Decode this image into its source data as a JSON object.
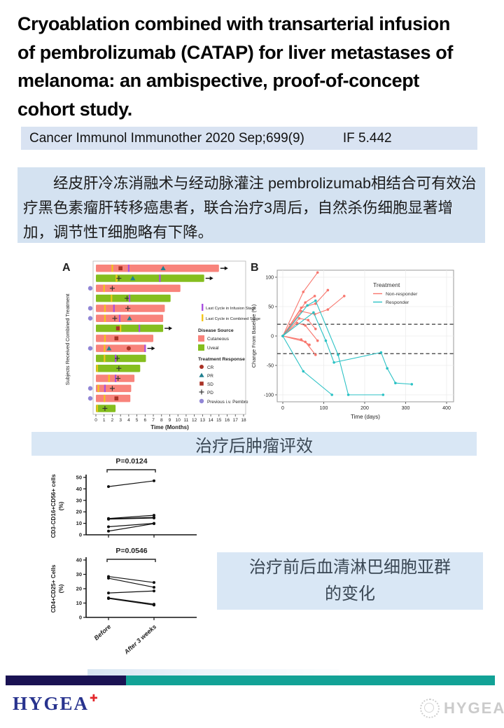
{
  "title": "Cryoablation combined with transarterial infusion\nof pembrolizumab (CATAP) for liver metastases of\nmelanoma: an ambispective, proof-of-concept\ncohort study.",
  "citation": {
    "journal": "Cancer Immunol Immunother 2020 Sep;699(9)",
    "impact_factor": "IF 5.442"
  },
  "summary_cn": "经皮肝冷冻消融术与经动脉灌注 pembrolizumab相结合可有效治疗黑色素瘤肝转移癌患者，联合治疗3周后，自然杀伤细胞显著增加，调节性T细胞略有下降。",
  "caption_tumor": "治疗后肿瘤评效",
  "caption_lymph_line1": "治疗前后血清淋巴细胞亚群",
  "caption_lymph_line2": "的变化",
  "footer": {
    "logo_text": "HYGEA",
    "watermark_text": "HYGEA"
  },
  "colors": {
    "cutaneous": "#f8837b",
    "uveal": "#85be1f",
    "infusion_line": "#a94fe0",
    "combined_line": "#f2c51c",
    "cr_sd": "#a93226",
    "pr": "#1f7f8f",
    "pd": "#333333",
    "pembro": "#9186d6",
    "nonresponder": "#f8766d",
    "responder": "#2cc2c5",
    "footer_navy": "#1a1253",
    "footer_teal": "#12a296"
  },
  "chart_data": [
    {
      "type": "swimmer",
      "panel": "A",
      "ylabel": "Subjects Received Combined Treatment",
      "xlabel": "Time (Months)",
      "xticks": [
        0,
        1,
        2,
        3,
        4,
        5,
        6,
        7,
        8,
        9,
        10,
        11,
        12,
        13,
        14,
        15,
        16,
        17,
        18
      ],
      "legend": {
        "infusion": "Last Cycle in Infusion Stage",
        "combined": "Last Cycle in Combined Stage",
        "disease_title": "Disease Source",
        "cutaneous": "Cutaneous",
        "uveal": "Uveal",
        "response_title": "Treatment Response",
        "cr": "CR",
        "pr": "PR",
        "sd": "SD",
        "pd": "PD",
        "pembro": "Previous i.v. Pembro"
      },
      "bars": [
        {
          "len": 15.0,
          "source": "cutaneous",
          "pembro": false,
          "arrow": true,
          "marks": [
            {
              "t": 2.0,
              "m": "combined"
            },
            {
              "t": 3.0,
              "m": "SD"
            },
            {
              "t": 4.0,
              "m": "infusion"
            },
            {
              "t": 8.2,
              "m": "PR"
            }
          ]
        },
        {
          "len": 13.2,
          "source": "uveal",
          "pembro": false,
          "arrow": true,
          "marks": [
            {
              "t": 2.5,
              "m": "combined"
            },
            {
              "t": 2.8,
              "m": "PD"
            },
            {
              "t": 4.5,
              "m": "PR"
            },
            {
              "t": 7.8,
              "m": "infusion"
            }
          ]
        },
        {
          "len": 10.3,
          "source": "cutaneous",
          "pembro": true,
          "arrow": false,
          "marks": [
            {
              "t": 1.0,
              "m": "combined"
            },
            {
              "t": 2.0,
              "m": "PD"
            }
          ]
        },
        {
          "len": 9.1,
          "source": "uveal",
          "pembro": false,
          "arrow": false,
          "marks": [
            {
              "t": 1.9,
              "m": "combined"
            },
            {
              "t": 3.8,
              "m": "PD"
            },
            {
              "t": 4.1,
              "m": "infusion"
            }
          ]
        },
        {
          "len": 8.4,
          "source": "cutaneous",
          "pembro": true,
          "arrow": false,
          "marks": [
            {
              "t": 1.1,
              "m": "combined"
            },
            {
              "t": 2.2,
              "m": "infusion"
            },
            {
              "t": 3.9,
              "m": "PD"
            }
          ]
        },
        {
          "len": 8.2,
          "source": "cutaneous",
          "pembro": true,
          "arrow": false,
          "marks": [
            {
              "t": 1.1,
              "m": "combined"
            },
            {
              "t": 2.3,
              "m": "PD"
            },
            {
              "t": 2.9,
              "m": "infusion"
            },
            {
              "t": 4.1,
              "m": "PR"
            }
          ]
        },
        {
          "len": 8.2,
          "source": "uveal",
          "pembro": false,
          "arrow": true,
          "marks": [
            {
              "t": 2.7,
              "m": "SD"
            },
            {
              "t": 3.0,
              "m": "combined"
            },
            {
              "t": 5.3,
              "m": "infusion"
            }
          ]
        },
        {
          "len": 7.0,
          "source": "cutaneous",
          "pembro": false,
          "arrow": false,
          "marks": [
            {
              "t": 1.1,
              "m": "combined"
            },
            {
              "t": 2.5,
              "m": "SD"
            }
          ]
        },
        {
          "len": 6.1,
          "source": "cutaneous",
          "pembro": true,
          "arrow": true,
          "marks": [
            {
              "t": 1.05,
              "m": "combined"
            },
            {
              "t": 1.6,
              "m": "PR"
            },
            {
              "t": 4.0,
              "m": "CR"
            },
            {
              "t": 6.0,
              "m": "infusion"
            }
          ]
        },
        {
          "len": 6.1,
          "source": "uveal",
          "pembro": false,
          "arrow": false,
          "marks": [
            {
              "t": 1.05,
              "m": "combined"
            },
            {
              "t": 2.4,
              "m": "infusion"
            },
            {
              "t": 2.6,
              "m": "PD"
            }
          ]
        },
        {
          "len": 5.4,
          "source": "uveal",
          "pembro": false,
          "arrow": false,
          "marks": [
            {
              "t": 0.15,
              "m": "combined"
            },
            {
              "t": 2.8,
              "m": "PD"
            }
          ]
        },
        {
          "len": 4.7,
          "source": "cutaneous",
          "pembro": false,
          "arrow": false,
          "marks": [
            {
              "t": 1.6,
              "m": "combined"
            },
            {
              "t": 2.4,
              "m": "infusion"
            },
            {
              "t": 2.7,
              "m": "PD"
            }
          ]
        },
        {
          "len": 4.3,
          "source": "cutaneous",
          "pembro": true,
          "arrow": false,
          "marks": [
            {
              "t": 0.3,
              "m": "combined"
            },
            {
              "t": 1.1,
              "m": "infusion"
            },
            {
              "t": 2.0,
              "m": "PD"
            }
          ]
        },
        {
          "len": 4.2,
          "source": "cutaneous",
          "pembro": true,
          "arrow": false,
          "marks": [
            {
              "t": 1.05,
              "m": "combined"
            },
            {
              "t": 2.5,
              "m": "SD"
            }
          ]
        },
        {
          "len": 2.4,
          "source": "uveal",
          "pembro": false,
          "arrow": false,
          "marks": [
            {
              "t": 0.15,
              "m": "combined"
            },
            {
              "t": 1.1,
              "m": "PD"
            }
          ]
        }
      ]
    },
    {
      "type": "line",
      "panel": "B",
      "ylabel": "Change From Baseline (%)",
      "xlabel": "Time (days)",
      "yticks": [
        -100,
        -50,
        0,
        50,
        100
      ],
      "xticks": [
        0,
        100,
        200,
        300,
        400
      ],
      "ref_lines": [
        20,
        -30
      ],
      "legend_title": "Treatment",
      "series": [
        {
          "name": "Non-responder",
          "color_key": "nonresponder",
          "lines": [
            [
              [
                0,
                0
              ],
              [
                50,
                75
              ],
              [
                85,
                108
              ]
            ],
            [
              [
                0,
                0
              ],
              [
                55,
                57
              ],
              [
                78,
                68
              ]
            ],
            [
              [
                0,
                0
              ],
              [
                45,
                48
              ],
              [
                80,
                55
              ],
              [
                110,
                78
              ]
            ],
            [
              [
                0,
                0
              ],
              [
                45,
                42
              ],
              [
                78,
                37
              ],
              [
                110,
                45
              ],
              [
                150,
                68
              ]
            ],
            [
              [
                0,
                0
              ],
              [
                40,
                30
              ],
              [
                62,
                27
              ],
              [
                80,
                12
              ]
            ],
            [
              [
                0,
                0
              ],
              [
                35,
                22
              ],
              [
                55,
                18
              ],
              [
                85,
                -8
              ]
            ],
            [
              [
                0,
                0
              ],
              [
                45,
                -6
              ],
              [
                65,
                -15
              ]
            ],
            [
              [
                0,
                0
              ],
              [
                55,
                -10
              ],
              [
                80,
                -32
              ]
            ]
          ]
        },
        {
          "name": "Responder",
          "color_key": "responder",
          "lines": [
            [
              [
                0,
                0
              ],
              [
                60,
                52
              ],
              [
                80,
                60
              ],
              [
                135,
                -32
              ],
              [
                160,
                -100
              ],
              [
                245,
                -100
              ]
            ],
            [
              [
                0,
                0
              ],
              [
                75,
                40
              ],
              [
                105,
                -8
              ],
              [
                125,
                -45
              ],
              [
                240,
                -28
              ],
              [
                255,
                -55
              ],
              [
                275,
                -80
              ],
              [
                315,
                -82
              ]
            ],
            [
              [
                0,
                0
              ],
              [
                50,
                -60
              ],
              [
                120,
                -100
              ]
            ]
          ]
        }
      ]
    },
    {
      "type": "paired",
      "p_label": "P=0.0124",
      "ylabel_line1": "CD3-CD16+CD56+ cells",
      "ylabel_line2": "(%)",
      "yticks": [
        0,
        10,
        20,
        30,
        40,
        50
      ],
      "ymax": 50,
      "pairs": [
        [
          42,
          47
        ],
        [
          14.2,
          17
        ],
        [
          14,
          15.2
        ],
        [
          13.6,
          14.6
        ],
        [
          7,
          10
        ],
        [
          3.2,
          9.7
        ]
      ]
    },
    {
      "type": "paired",
      "p_label": "P=0.0546",
      "ylabel_line1": "CD4+CD25+ Cells",
      "ylabel_line2": "(%)",
      "yticks": [
        0,
        10,
        20,
        30,
        40
      ],
      "ymax": 40,
      "pairs": [
        [
          28.5,
          24.3
        ],
        [
          27.3,
          21
        ],
        [
          17,
          18.4
        ],
        [
          13.6,
          9.2
        ],
        [
          13.2,
          8.6
        ]
      ],
      "categories": [
        "Before",
        "After 3 weeks"
      ]
    }
  ]
}
